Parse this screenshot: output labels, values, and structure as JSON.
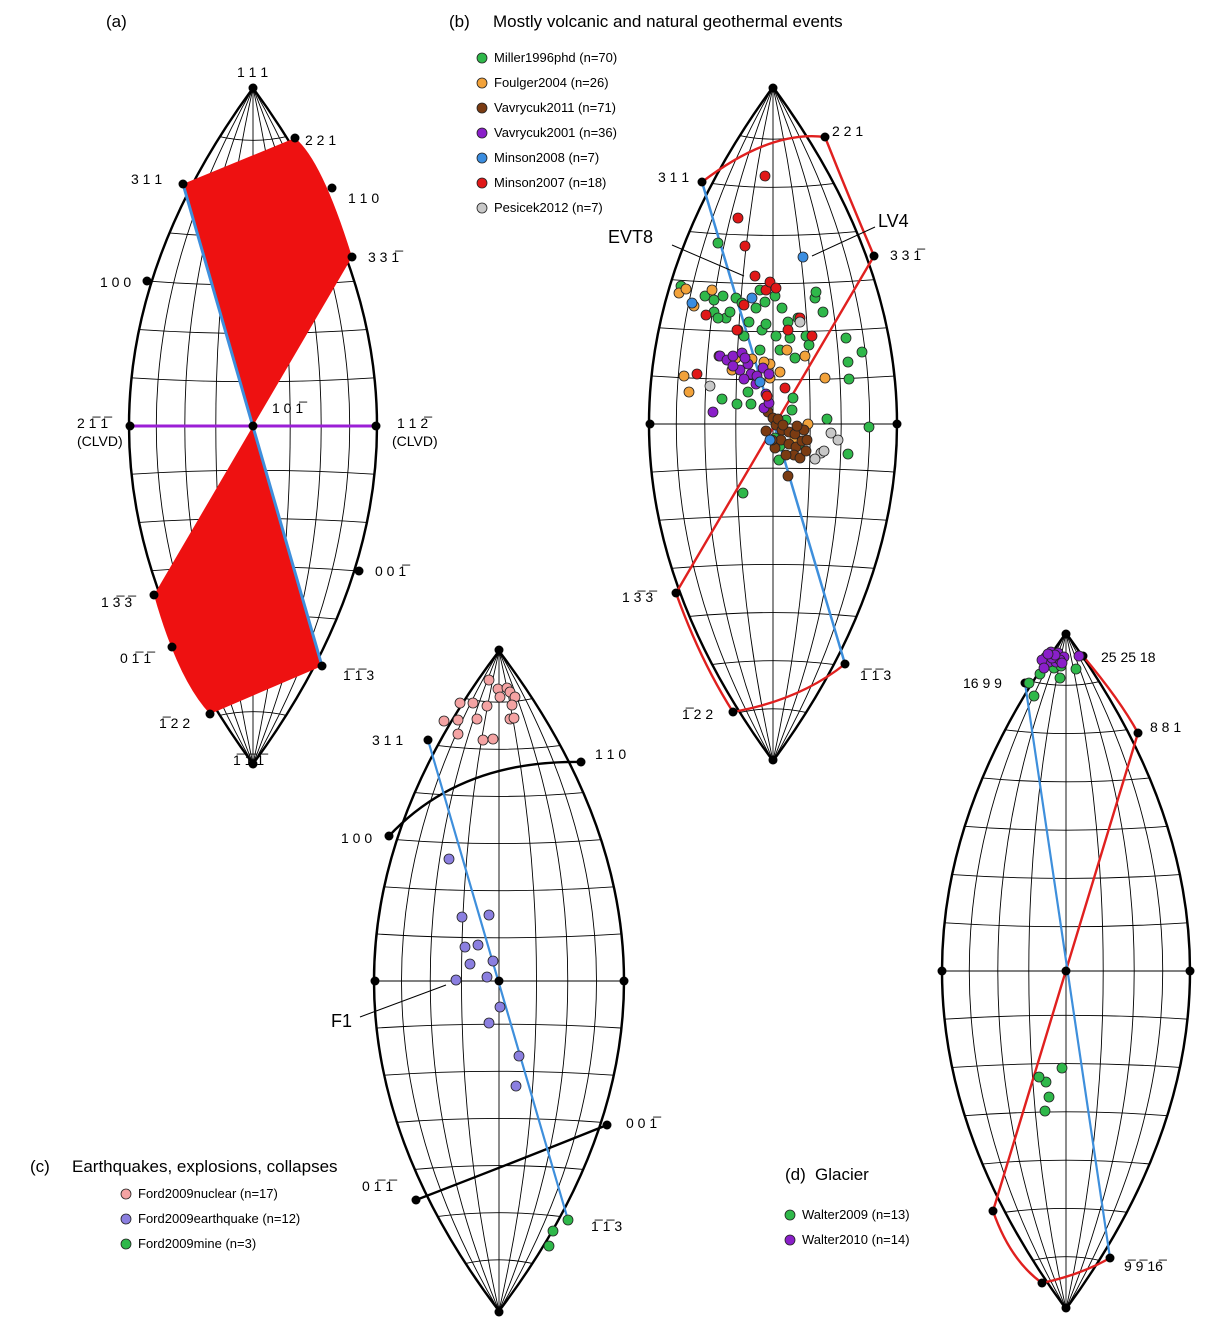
{
  "panels": [
    {
      "id": "a",
      "label": "(a)",
      "title": "",
      "vertex_labels": [
        "1 1 1",
        "2 2 1",
        "1 1 0",
        "3 3 1̅",
        "3 1 1",
        "1 0 0",
        "2 1̅ 1̅",
        "(CLVD)",
        "1 1 2̅",
        "(CLVD)",
        "1 0 1̅",
        "0 0 1̅",
        "1 3̅ 3̅",
        "0 1̅ 1̅",
        "1̅ 1̅ 3",
        "1̅ 2 2",
        "1̅ 1̅ 1̅"
      ],
      "legend": []
    },
    {
      "id": "b",
      "label": "(b)",
      "title": "Mostly volcanic and natural geothermal events",
      "vertex_labels": [
        "2 2 1",
        "3 1 1",
        "3 3 1̅",
        "1 3̅ 3̅",
        "1̅ 1̅ 3",
        "1̅ 2 2"
      ],
      "annotations": [
        "EVT8",
        "LV4"
      ],
      "legend": [
        {
          "label": "Miller1996phd (n=70)",
          "color": "#2fb84a"
        },
        {
          "label": "Foulger2004 (n=26)",
          "color": "#f2a23a"
        },
        {
          "label": "Vavrycuk2011 (n=71)",
          "color": "#7a3b12"
        },
        {
          "label": "Vavrycuk2001 (n=36)",
          "color": "#8a1fc9"
        },
        {
          "label": "Minson2008 (n=7)",
          "color": "#3a8de0"
        },
        {
          "label": "Minson2007 (n=18)",
          "color": "#e01818"
        },
        {
          "label": "Pesicek2012 (n=7)",
          "color": "#c8c8c8"
        }
      ]
    },
    {
      "id": "c",
      "label": "(c)",
      "title": "Earthquakes, explosions, collapses",
      "vertex_labels": [
        "3 1 1",
        "1 1 0",
        "1 0 0",
        "0 0 1̅",
        "0 1̅ 1̅",
        "1̅ 1̅ 3"
      ],
      "annotations": [
        "F1"
      ],
      "legend": [
        {
          "label": "Ford2009nuclear (n=17)",
          "color": "#f4a3a3"
        },
        {
          "label": "Ford2009earthquake (n=12)",
          "color": "#8b7fe0"
        },
        {
          "label": "Ford2009mine (n=3)",
          "color": "#2fb84a"
        }
      ]
    },
    {
      "id": "d",
      "label": "(d)",
      "title": "Glacier",
      "vertex_labels": [
        "25 25 18",
        "16 9 9",
        "8 8 1",
        "9̅ 9̅ 16̅"
      ],
      "legend": [
        {
          "label": "Walter2009 (n=13)",
          "color": "#2fb84a"
        },
        {
          "label": "Walter2010 (n=14)",
          "color": "#8a1fc9"
        }
      ]
    }
  ],
  "colors": {
    "red_fill": "#ee1111",
    "blue_line": "#3e8fdc",
    "purple_line": "#9b1fd6",
    "red_line": "#e0201f"
  }
}
